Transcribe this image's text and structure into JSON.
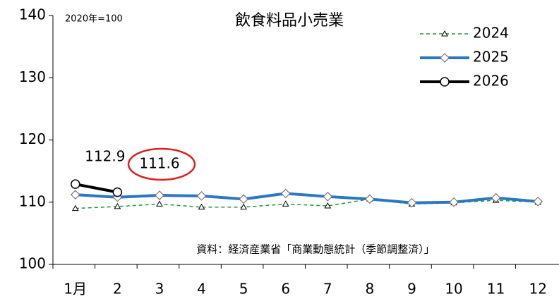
{
  "chart_data": {
    "type": "line",
    "title": "飲食料品小売業",
    "annotations": [
      "2020年=100",
      "資料：経済産業省「商業動態統計（季節調整済）」"
    ],
    "categories": [
      "1月",
      "2",
      "3",
      "4",
      "5",
      "6",
      "7",
      "8",
      "9",
      "10",
      "11",
      "12"
    ],
    "series": [
      {
        "name": "2024",
        "color": "#1a9a3a",
        "dashed": true,
        "marker": "triangle",
        "values": [
          109.0,
          109.3,
          109.7,
          109.2,
          109.2,
          109.7,
          109.4,
          110.5,
          109.7,
          109.9,
          110.3,
          110.0
        ]
      },
      {
        "name": "2025",
        "color": "#2a78c2",
        "dashed": false,
        "marker": "diamond",
        "values": [
          111.2,
          110.8,
          111.1,
          111.0,
          110.5,
          111.4,
          110.9,
          110.5,
          109.9,
          110.0,
          110.7,
          110.1
        ]
      },
      {
        "name": "2026",
        "color": "#000000",
        "dashed": false,
        "marker": "circle",
        "values": [
          112.9,
          111.6,
          null,
          null,
          null,
          null,
          null,
          null,
          null,
          null,
          null,
          null
        ]
      }
    ],
    "ylim": [
      100,
      140
    ],
    "yticks": [
      100,
      110,
      120,
      130,
      140
    ],
    "legend": "upper right",
    "grid": false
  }
}
